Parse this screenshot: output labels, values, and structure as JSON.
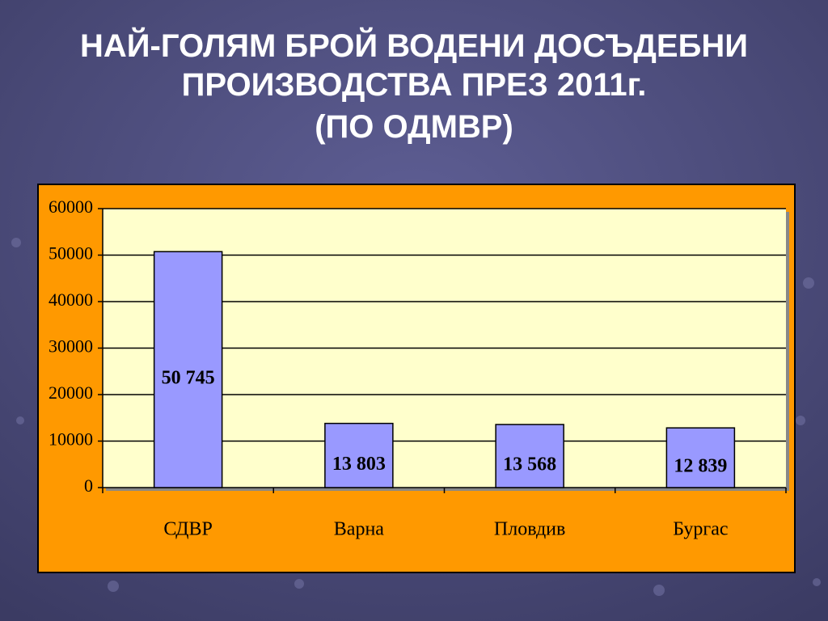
{
  "chart_data": {
    "type": "bar",
    "title": [
      "НАЙ-ГОЛЯМ БРОЙ ВОДЕНИ ДОСЪДЕБНИ",
      "ПРОИЗВОДСТВА ПРЕЗ 2011г.",
      "(ПО ОДМВР)"
    ],
    "categories": [
      "СДВР",
      "Варна",
      "Пловдив",
      "Бургас"
    ],
    "values": [
      50745,
      13803,
      13568,
      12839
    ],
    "value_labels": [
      "50 745",
      "13 803",
      "13 568",
      "12 839"
    ],
    "color": "#9999ff",
    "ylim": [
      0,
      60000
    ],
    "yticks": [
      0,
      10000,
      20000,
      30000,
      40000,
      50000,
      60000
    ],
    "grid": true
  }
}
